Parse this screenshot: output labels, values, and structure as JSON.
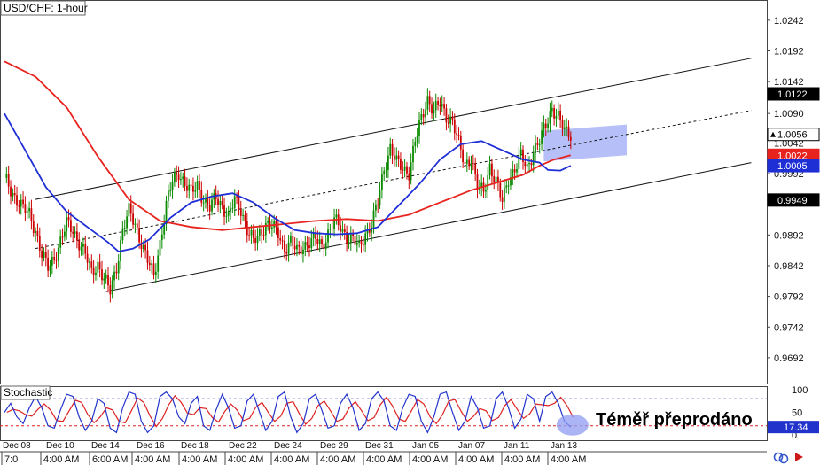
{
  "title": "USD/CHF: 1-hour",
  "colors": {
    "bull": "#0b8a00",
    "bear": "#cc0000",
    "ma_fast": "#1f2fd6",
    "ma_slow": "#e8231e",
    "stoch_k": "#2233cc",
    "stoch_d": "#dd2222",
    "highlight": "#8f9cf2",
    "channel": "#111111"
  },
  "chart_data": [
    {
      "type": "line",
      "title": "USD/CHF: 1-hour",
      "ylim": [
        0.965,
        1.0275
      ],
      "y_ticks": [
        "1.0242",
        "1.0192",
        "1.0142",
        "1.0090",
        "1.0042",
        "0.9992",
        "0.9892",
        "0.9842",
        "0.9792",
        "0.9742",
        "0.9692"
      ],
      "price_badges": [
        {
          "name": "channel-top",
          "value": "1.0122",
          "style": "black"
        },
        {
          "name": "last-price",
          "value": "1.0056",
          "style": "white"
        },
        {
          "name": "ma-slow",
          "value": "1.0022",
          "style": "red"
        },
        {
          "name": "ma-fast",
          "value": "1.0005",
          "style": "blue"
        },
        {
          "name": "channel-bottom",
          "value": "0.9949",
          "style": "black"
        }
      ],
      "x_date_labels": [
        "Dec 08",
        "Dec 10",
        "Dec 14",
        "Dec 16",
        "Dec 18",
        "Dec 22",
        "Dec 24",
        "Dec 29",
        "Dec 31",
        "Jan 05",
        "Jan 07",
        "Jan 11",
        "Jan 13"
      ],
      "x_time_labels": [
        "7:0",
        "4:00 AM",
        "6:00 AM",
        "4:00 AM",
        "4:00 AM",
        "4:00 AM",
        "4:00 AM",
        "4:00 AM",
        "4:00 AM",
        "4:00 AM",
        "4:00 AM",
        "4:00 AM",
        "4:00 AM"
      ],
      "price_path": [
        [
          0,
          0.9985
        ],
        [
          3,
          0.9965
        ],
        [
          6,
          0.995
        ],
        [
          9,
          0.9935
        ],
        [
          12,
          0.9925
        ],
        [
          15,
          0.99
        ],
        [
          18,
          0.986
        ],
        [
          21,
          0.9838
        ],
        [
          24,
          0.9855
        ],
        [
          27,
          0.9882
        ],
        [
          30,
          0.991
        ],
        [
          33,
          0.99
        ],
        [
          36,
          0.988
        ],
        [
          39,
          0.986
        ],
        [
          42,
          0.983
        ],
        [
          45,
          0.9845
        ],
        [
          48,
          0.982
        ],
        [
          51,
          0.98
        ],
        [
          54,
          0.984
        ],
        [
          57,
          0.99
        ],
        [
          60,
          0.993
        ],
        [
          63,
          0.991
        ],
        [
          66,
          0.988
        ],
        [
          69,
          0.985
        ],
        [
          72,
          0.9825
        ],
        [
          75,
          0.988
        ],
        [
          78,
          0.994
        ],
        [
          81,
          0.998
        ],
        [
          84,
          0.9995
        ],
        [
          87,
          0.9975
        ],
        [
          90,
          0.996
        ],
        [
          93,
          0.9975
        ],
        [
          96,
          0.995
        ],
        [
          99,
          0.9935
        ],
        [
          102,
          0.9955
        ],
        [
          105,
          0.994
        ],
        [
          108,
          0.992
        ],
        [
          111,
          0.995
        ],
        [
          114,
          0.9935
        ],
        [
          117,
          0.99
        ],
        [
          120,
          0.988
        ],
        [
          123,
          0.9895
        ],
        [
          126,
          0.991
        ],
        [
          129,
          0.9905
        ],
        [
          132,
          0.9895
        ],
        [
          135,
          0.987
        ],
        [
          138,
          0.988
        ],
        [
          141,
          0.9865
        ],
        [
          144,
          0.9875
        ],
        [
          147,
          0.988
        ],
        [
          150,
          0.9885
        ],
        [
          153,
          0.9875
        ],
        [
          156,
          0.9895
        ],
        [
          159,
          0.9915
        ],
        [
          162,
          0.9905
        ],
        [
          165,
          0.989
        ],
        [
          168,
          0.9885
        ],
        [
          171,
          0.987
        ],
        [
          174,
          0.9895
        ],
        [
          177,
          0.991
        ],
        [
          180,
          0.9945
        ],
        [
          183,
          1.0
        ],
        [
          186,
          1.0035
        ],
        [
          189,
          1.001
        ],
        [
          192,
          1.0
        ],
        [
          195,
          0.9995
        ],
        [
          198,
          1.0045
        ],
        [
          201,
          1.008
        ],
        [
          204,
          1.0115
        ],
        [
          207,
          1.0095
        ],
        [
          210,
          1.0105
        ],
        [
          213,
          1.0085
        ],
        [
          216,
          1.008
        ],
        [
          219,
          1.004
        ],
        [
          222,
          1.0005
        ],
        [
          225,
          1.002
        ],
        [
          228,
          0.997
        ],
        [
          231,
          0.996
        ],
        [
          234,
          1.0005
        ],
        [
          237,
          0.998
        ],
        [
          240,
          0.9945
        ],
        [
          243,
          0.9985
        ],
        [
          246,
          1.0
        ],
        [
          249,
          1.002
        ],
        [
          252,
          1.0
        ],
        [
          255,
          1.003
        ],
        [
          258,
          1.0045
        ],
        [
          261,
          1.007
        ],
        [
          264,
          1.01
        ],
        [
          267,
          1.0085
        ],
        [
          270,
          1.006
        ],
        [
          273,
          1.0056
        ]
      ],
      "ma_fast": [
        [
          0,
          1.009
        ],
        [
          10,
          1.003
        ],
        [
          20,
          0.997
        ],
        [
          30,
          0.993
        ],
        [
          40,
          0.9905
        ],
        [
          50,
          0.988
        ],
        [
          55,
          0.9865
        ],
        [
          62,
          0.987
        ],
        [
          70,
          0.9885
        ],
        [
          80,
          0.992
        ],
        [
          90,
          0.9945
        ],
        [
          100,
          0.9955
        ],
        [
          110,
          0.996
        ],
        [
          120,
          0.9945
        ],
        [
          130,
          0.992
        ],
        [
          140,
          0.99
        ],
        [
          150,
          0.9895
        ],
        [
          160,
          0.9893
        ],
        [
          170,
          0.9895
        ],
        [
          180,
          0.9905
        ],
        [
          190,
          0.994
        ],
        [
          200,
          0.9975
        ],
        [
          210,
          1.0015
        ],
        [
          220,
          1.004
        ],
        [
          230,
          1.0045
        ],
        [
          240,
          1.003
        ],
        [
          250,
          1.0015
        ],
        [
          258,
          1.001
        ],
        [
          262,
          0.9998
        ],
        [
          268,
          0.9997
        ],
        [
          273,
          1.0005
        ]
      ],
      "ma_slow": [
        [
          0,
          1.0175
        ],
        [
          15,
          1.015
        ],
        [
          30,
          1.01
        ],
        [
          45,
          1.002
        ],
        [
          60,
          0.995
        ],
        [
          75,
          0.9915
        ],
        [
          90,
          0.9905
        ],
        [
          105,
          0.99
        ],
        [
          120,
          0.9905
        ],
        [
          135,
          0.991
        ],
        [
          150,
          0.9915
        ],
        [
          165,
          0.9918
        ],
        [
          180,
          0.9915
        ],
        [
          195,
          0.9925
        ],
        [
          210,
          0.9945
        ],
        [
          225,
          0.9965
        ],
        [
          240,
          0.998
        ],
        [
          250,
          0.999
        ],
        [
          258,
          1.0005
        ],
        [
          265,
          1.0015
        ],
        [
          273,
          1.0022
        ]
      ],
      "channel": {
        "upper": [
          [
            15,
            0.995
          ],
          [
            360,
            1.018
          ]
        ],
        "middle": [
          [
            15,
            0.987
          ],
          [
            360,
            1.0095
          ]
        ],
        "lower": [
          [
            49,
            0.98
          ],
          [
            360,
            1.001
          ]
        ]
      },
      "highlight_box": {
        "x": [
          260,
          300
        ],
        "y": [
          1.0028,
          1.0062
        ],
        "slant": 0.001
      }
    },
    {
      "type": "line",
      "title": "Stochastic",
      "ylim": [
        0,
        100
      ],
      "y_ticks": [
        "100",
        "50",
        "0"
      ],
      "levels": [
        80,
        20
      ],
      "last_value": "17.34",
      "annotation": "Téměř přeprodáno",
      "k_line": [
        [
          0,
          50
        ],
        [
          3,
          70
        ],
        [
          6,
          40
        ],
        [
          9,
          25
        ],
        [
          12,
          60
        ],
        [
          15,
          85
        ],
        [
          18,
          60
        ],
        [
          21,
          20
        ],
        [
          24,
          15
        ],
        [
          27,
          55
        ],
        [
          30,
          90
        ],
        [
          33,
          85
        ],
        [
          36,
          40
        ],
        [
          39,
          10
        ],
        [
          42,
          30
        ],
        [
          45,
          80
        ],
        [
          48,
          70
        ],
        [
          51,
          15
        ],
        [
          54,
          5
        ],
        [
          57,
          60
        ],
        [
          60,
          95
        ],
        [
          63,
          90
        ],
        [
          66,
          30
        ],
        [
          69,
          5
        ],
        [
          72,
          20
        ],
        [
          75,
          85
        ],
        [
          78,
          95
        ],
        [
          81,
          80
        ],
        [
          84,
          40
        ],
        [
          87,
          25
        ],
        [
          90,
          70
        ],
        [
          93,
          85
        ],
        [
          96,
          20
        ],
        [
          99,
          10
        ],
        [
          102,
          55
        ],
        [
          105,
          90
        ],
        [
          108,
          60
        ],
        [
          111,
          15
        ],
        [
          114,
          20
        ],
        [
          117,
          75
        ],
        [
          120,
          90
        ],
        [
          123,
          50
        ],
        [
          126,
          10
        ],
        [
          129,
          30
        ],
        [
          132,
          85
        ],
        [
          135,
          95
        ],
        [
          138,
          40
        ],
        [
          141,
          5
        ],
        [
          144,
          25
        ],
        [
          147,
          80
        ],
        [
          150,
          90
        ],
        [
          153,
          55
        ],
        [
          156,
          15
        ],
        [
          159,
          20
        ],
        [
          162,
          70
        ],
        [
          165,
          90
        ],
        [
          168,
          60
        ],
        [
          171,
          10
        ],
        [
          174,
          25
        ],
        [
          177,
          80
        ],
        [
          180,
          95
        ],
        [
          183,
          75
        ],
        [
          186,
          20
        ],
        [
          189,
          10
        ],
        [
          192,
          60
        ],
        [
          195,
          90
        ],
        [
          198,
          85
        ],
        [
          201,
          30
        ],
        [
          204,
          5
        ],
        [
          207,
          40
        ],
        [
          210,
          90
        ],
        [
          213,
          95
        ],
        [
          216,
          50
        ],
        [
          219,
          10
        ],
        [
          222,
          30
        ],
        [
          225,
          85
        ],
        [
          228,
          60
        ],
        [
          231,
          15
        ],
        [
          234,
          20
        ],
        [
          237,
          80
        ],
        [
          240,
          95
        ],
        [
          243,
          60
        ],
        [
          246,
          15
        ],
        [
          249,
          35
        ],
        [
          252,
          90
        ],
        [
          255,
          80
        ],
        [
          258,
          30
        ],
        [
          261,
          85
        ],
        [
          264,
          95
        ],
        [
          267,
          70
        ],
        [
          270,
          30
        ],
        [
          273,
          17
        ]
      ]
    }
  ]
}
